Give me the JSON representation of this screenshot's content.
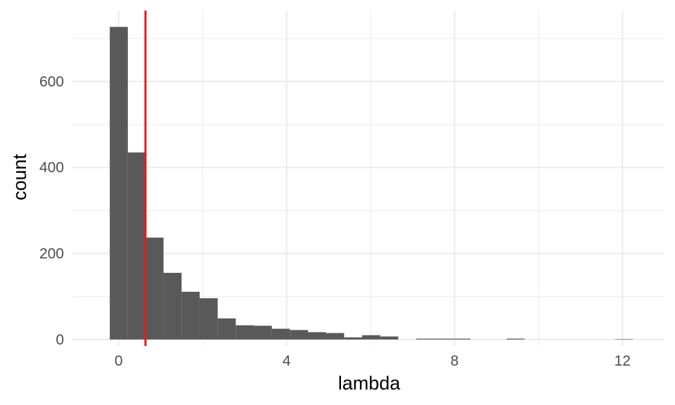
{
  "chart_data": {
    "type": "bar",
    "title": "",
    "xlabel": "lambda",
    "ylabel": "count",
    "xlim": [
      -1.1,
      13.0
    ],
    "ylim": [
      -15,
      765
    ],
    "x_ticks": [
      0,
      4,
      8,
      12
    ],
    "y_ticks": [
      0,
      200,
      400,
      600
    ],
    "x_minor": [
      -2,
      2,
      6,
      10
    ],
    "y_minor": [
      100,
      300,
      500,
      700
    ],
    "grid": true,
    "bar_color": "#595959",
    "bars": [
      {
        "x0": -0.21,
        "x1": 0.22,
        "count": 727
      },
      {
        "x0": 0.22,
        "x1": 0.64,
        "count": 435
      },
      {
        "x0": 0.64,
        "x1": 1.07,
        "count": 237
      },
      {
        "x0": 1.07,
        "x1": 1.5,
        "count": 155
      },
      {
        "x0": 1.5,
        "x1": 1.93,
        "count": 111
      },
      {
        "x0": 1.93,
        "x1": 2.36,
        "count": 96
      },
      {
        "x0": 2.36,
        "x1": 2.79,
        "count": 49
      },
      {
        "x0": 2.79,
        "x1": 3.22,
        "count": 33
      },
      {
        "x0": 3.22,
        "x1": 3.65,
        "count": 32
      },
      {
        "x0": 3.65,
        "x1": 4.08,
        "count": 25
      },
      {
        "x0": 4.08,
        "x1": 4.51,
        "count": 22
      },
      {
        "x0": 4.51,
        "x1": 4.94,
        "count": 17
      },
      {
        "x0": 4.94,
        "x1": 5.37,
        "count": 15
      },
      {
        "x0": 5.37,
        "x1": 5.8,
        "count": 5
      },
      {
        "x0": 5.8,
        "x1": 6.23,
        "count": 10
      },
      {
        "x0": 6.23,
        "x1": 6.66,
        "count": 7
      },
      {
        "x0": 6.66,
        "x1": 7.09,
        "count": 0
      },
      {
        "x0": 7.09,
        "x1": 7.52,
        "count": 2
      },
      {
        "x0": 7.52,
        "x1": 7.95,
        "count": 2
      },
      {
        "x0": 7.95,
        "x1": 8.38,
        "count": 2
      },
      {
        "x0": 8.38,
        "x1": 8.81,
        "count": 0
      },
      {
        "x0": 8.81,
        "x1": 9.24,
        "count": 0
      },
      {
        "x0": 9.24,
        "x1": 9.67,
        "count": 2
      },
      {
        "x0": 9.67,
        "x1": 10.1,
        "count": 0
      },
      {
        "x0": 10.1,
        "x1": 10.53,
        "count": 0
      },
      {
        "x0": 10.53,
        "x1": 10.96,
        "count": 0
      },
      {
        "x0": 10.96,
        "x1": 11.39,
        "count": 0
      },
      {
        "x0": 11.39,
        "x1": 11.82,
        "count": 0
      },
      {
        "x0": 11.82,
        "x1": 12.25,
        "count": 1
      }
    ],
    "vline": {
      "x": 0.64,
      "color": "#e41a1c"
    }
  }
}
